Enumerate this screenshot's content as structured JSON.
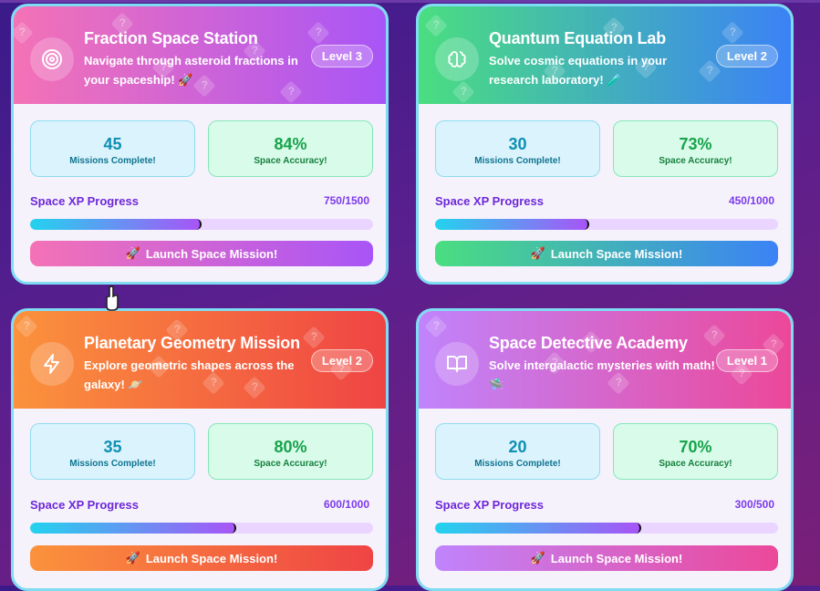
{
  "cards": [
    {
      "title": "Fraction Space Station",
      "description": "Navigate through asteroid fractions in your spaceship! 🚀",
      "level": "Level 3",
      "icon": "target-icon",
      "missions": "45",
      "missions_label": "Missions Complete!",
      "accuracy": "84%",
      "accuracy_label": "Space Accuracy!",
      "xp_label": "Space XP Progress",
      "xp_count": "750/1500",
      "xp_progress": 0.5,
      "launch_label": "Launch Space Mission!",
      "launch_icon": "🚀"
    },
    {
      "title": "Quantum Equation Lab",
      "description": "Solve cosmic equations in your research laboratory! 🧪",
      "level": "Level 2",
      "icon": "brain-icon",
      "missions": "30",
      "missions_label": "Missions Complete!",
      "accuracy": "73%",
      "accuracy_label": "Space Accuracy!",
      "xp_label": "Space XP Progress",
      "xp_count": "450/1000",
      "xp_progress": 0.45,
      "launch_label": "Launch Space Mission!",
      "launch_icon": "🚀"
    },
    {
      "title": "Planetary Geometry Mission",
      "description": "Explore geometric shapes across the galaxy! 🪐",
      "level": "Level 2",
      "icon": "lightning-icon",
      "missions": "35",
      "missions_label": "Missions Complete!",
      "accuracy": "80%",
      "accuracy_label": "Space Accuracy!",
      "xp_label": "Space XP Progress",
      "xp_count": "600/1000",
      "xp_progress": 0.6,
      "launch_label": "Launch Space Mission!",
      "launch_icon": "🚀"
    },
    {
      "title": "Space Detective Academy",
      "description": "Solve intergalactic mysteries with math! 🛸",
      "level": "Level 1",
      "icon": "book-icon",
      "missions": "20",
      "missions_label": "Missions Complete!",
      "accuracy": "70%",
      "accuracy_label": "Space Accuracy!",
      "xp_label": "Space XP Progress",
      "xp_count": "300/500",
      "xp_progress": 0.6,
      "launch_label": "Launch Space Mission!",
      "launch_icon": "🚀"
    }
  ],
  "colors": {
    "card1_gradient": [
      "#f472b6",
      "#a855f7"
    ],
    "card2_gradient": [
      "#4ade80",
      "#3b82f6"
    ],
    "card3_gradient": [
      "#fb923c",
      "#ef4444"
    ],
    "card4_gradient": [
      "#c084fc",
      "#ec4899"
    ],
    "progress_gradient": [
      "#22d3ee",
      "#a855f7"
    ],
    "background": "#5b1f8e"
  }
}
